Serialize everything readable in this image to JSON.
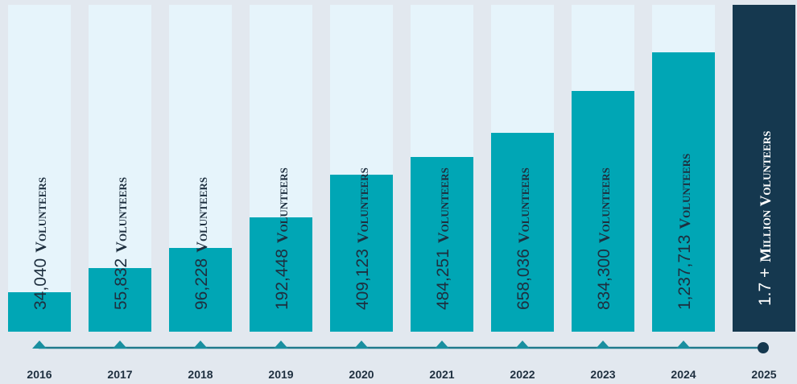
{
  "items": [
    {
      "year": "2016",
      "count": "34,040",
      "unit": "Volunteers"
    },
    {
      "year": "2017",
      "count": "55,832",
      "unit": "Volunteers"
    },
    {
      "year": "2018",
      "count": "96,228",
      "unit": "Volunteers"
    },
    {
      "year": "2019",
      "count": "192,448",
      "unit": "Volunteers"
    },
    {
      "year": "2020",
      "count": "409,123",
      "unit": "Volunteers"
    },
    {
      "year": "2021",
      "count": "484,251",
      "unit": "Volunteers"
    },
    {
      "year": "2022",
      "count": "658,036",
      "unit": "Volunteers"
    },
    {
      "year": "2023",
      "count": "834,300",
      "unit": "Volunteers"
    },
    {
      "year": "2024",
      "count": "1,237,713",
      "unit": "Volunteers"
    }
  ],
  "final": {
    "year": "2025",
    "count": "1.7 +",
    "unit": "Million Volunteers"
  }
}
